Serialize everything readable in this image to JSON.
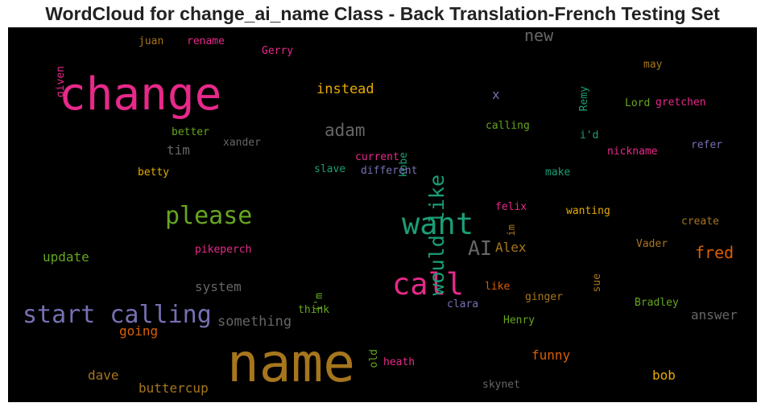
{
  "title": "WordCloud for change_ai_name Class - Back Translation-French Testing Set",
  "colors": {
    "magenta": "#e7298a",
    "gold": "#a6761d",
    "green": "#66a61e",
    "teal": "#1b9e77",
    "purple": "#7570b3",
    "orange": "#d95f02",
    "yellow": "#e6ab02",
    "gray": "#666666"
  },
  "words": [
    {
      "text": "name",
      "color": "gold"
    },
    {
      "text": "change",
      "color": "magenta"
    },
    {
      "text": "want",
      "color": "teal"
    },
    {
      "text": "call",
      "color": "magenta"
    },
    {
      "text": "please",
      "color": "green"
    },
    {
      "text": "start calling",
      "color": "purple"
    },
    {
      "text": "would like",
      "color": "teal",
      "vertical": true
    },
    {
      "text": "AI",
      "color": "gray"
    },
    {
      "text": "adam",
      "color": "gray"
    },
    {
      "text": "new",
      "color": "gray"
    },
    {
      "text": "fred",
      "color": "orange"
    },
    {
      "text": "instead",
      "color": "yellow"
    },
    {
      "text": "update",
      "color": "green"
    },
    {
      "text": "system",
      "color": "gray"
    },
    {
      "text": "something",
      "color": "gray"
    },
    {
      "text": "going",
      "color": "orange"
    },
    {
      "text": "funny",
      "color": "orange"
    },
    {
      "text": "bob",
      "color": "yellow"
    },
    {
      "text": "dave",
      "color": "gold"
    },
    {
      "text": "buttercup",
      "color": "gold"
    },
    {
      "text": "answer",
      "color": "gray"
    },
    {
      "text": "Alex",
      "color": "gold"
    },
    {
      "text": "tim",
      "color": "gray"
    },
    {
      "text": "x",
      "color": "purple"
    },
    {
      "text": "juan",
      "color": "gold"
    },
    {
      "text": "rename",
      "color": "magenta"
    },
    {
      "text": "Gerry",
      "color": "magenta"
    },
    {
      "text": "given",
      "color": "magenta",
      "vertical": true
    },
    {
      "text": "better",
      "color": "green"
    },
    {
      "text": "xander",
      "color": "gray"
    },
    {
      "text": "betty",
      "color": "yellow"
    },
    {
      "text": "current",
      "color": "magenta"
    },
    {
      "text": "kobe",
      "color": "teal",
      "vertical": true
    },
    {
      "text": "slave",
      "color": "teal"
    },
    {
      "text": "different",
      "color": "purple"
    },
    {
      "text": "calling",
      "color": "green"
    },
    {
      "text": "Remy",
      "color": "teal",
      "vertical": true
    },
    {
      "text": "may",
      "color": "gold"
    },
    {
      "text": "Lord",
      "color": "green"
    },
    {
      "text": "gretchen",
      "color": "magenta"
    },
    {
      "text": "i'd",
      "color": "teal"
    },
    {
      "text": "nickname",
      "color": "magenta"
    },
    {
      "text": "refer",
      "color": "purple"
    },
    {
      "text": "make",
      "color": "teal"
    },
    {
      "text": "felix",
      "color": "magenta"
    },
    {
      "text": "im",
      "color": "gold",
      "vertical": true
    },
    {
      "text": "wanting",
      "color": "yellow"
    },
    {
      "text": "create",
      "color": "gold"
    },
    {
      "text": "pikeperch",
      "color": "magenta"
    },
    {
      "text": "Vader",
      "color": "gold"
    },
    {
      "text": "sue",
      "color": "gold",
      "vertical": true
    },
    {
      "text": "i'm",
      "color": "green",
      "vertical": true
    },
    {
      "text": "like",
      "color": "orange"
    },
    {
      "text": "ginger",
      "color": "gold"
    },
    {
      "text": "clara",
      "color": "purple"
    },
    {
      "text": "Bradley",
      "color": "green"
    },
    {
      "text": "think",
      "color": "green"
    },
    {
      "text": "Henry",
      "color": "green"
    },
    {
      "text": "old",
      "color": "green",
      "vertical": true
    },
    {
      "text": "heath",
      "color": "magenta"
    },
    {
      "text": "skynet",
      "color": "gray"
    }
  ]
}
